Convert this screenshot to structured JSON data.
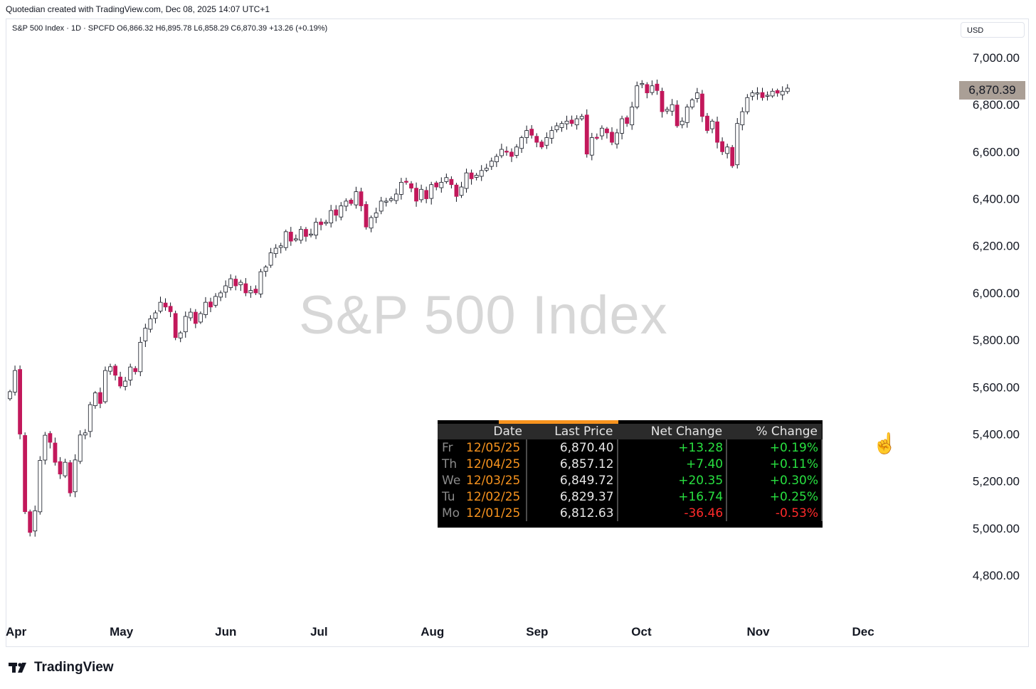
{
  "header": {
    "caption": "Quotedian created with TradingView.com, Dec 08, 2025 14:07 UTC+1",
    "legend": "S&P 500 Index · 1D · SPCFD  O6,866.32  H6,895.78  L6,858.29  C6,870.39  +13.26 (+0.19%)",
    "currency": "USD"
  },
  "watermark": "S&P 500 Index",
  "last_price_tag": "6,870.39",
  "footer": {
    "brand": "TradingView"
  },
  "colors": {
    "up": "#ffffff",
    "down": "#c2185b",
    "wick": "#131722",
    "tag": "#aa9f96"
  },
  "chart_data": {
    "type": "candlestick",
    "title": "S&P 500 Index",
    "ylim": [
      4700,
      7100
    ],
    "y_ticks": [
      "7,000.00",
      "6,800.00",
      "6,600.00",
      "6,400.00",
      "6,200.00",
      "6,000.00",
      "5,800.00",
      "5,600.00",
      "5,400.00",
      "5,200.00",
      "5,000.00",
      "4,800.00"
    ],
    "y_tick_values": [
      7000,
      6800,
      6600,
      6400,
      6200,
      6000,
      5800,
      5600,
      5400,
      5200,
      5000,
      4800
    ],
    "x_ticks": [
      "Apr",
      "May",
      "Jun",
      "Jul",
      "Aug",
      "Sep",
      "Oct",
      "Nov",
      "Dec"
    ],
    "x_tick_sessions": [
      0,
      22,
      43,
      62,
      84,
      105,
      126,
      149,
      170
    ],
    "closes": [
      5580,
      5670,
      5400,
      5070,
      4982,
      5074,
      5288,
      5395,
      5365,
      5280,
      5230,
      5280,
      5150,
      5290,
      5396,
      5405,
      5525,
      5575,
      5530,
      5670,
      5686,
      5650,
      5604,
      5625,
      5685,
      5665,
      5790,
      5850,
      5890,
      5915,
      5960,
      5940,
      5920,
      5810,
      5830,
      5900,
      5918,
      5870,
      5912,
      5960,
      5940,
      5985,
      6000,
      6030,
      6060,
      6030,
      6045,
      6000,
      6010,
      6000,
      6090,
      6110,
      6170,
      6190,
      6200,
      6260,
      6220,
      6230,
      6270,
      6240,
      6250,
      6300,
      6290,
      6300,
      6350,
      6330,
      6370,
      6390,
      6380,
      6430,
      6370,
      6280,
      6320,
      6340,
      6390,
      6390,
      6400,
      6420,
      6470,
      6470,
      6445,
      6390,
      6440,
      6400,
      6460,
      6450,
      6470,
      6490,
      6460,
      6410,
      6450,
      6510,
      6485,
      6500,
      6520,
      6530,
      6560,
      6580,
      6610,
      6600,
      6580,
      6620,
      6660,
      6690,
      6670,
      6640,
      6620,
      6660,
      6690,
      6710,
      6720,
      6730,
      6720,
      6740,
      6750,
      6590,
      6660,
      6660,
      6700,
      6680,
      6640,
      6680,
      6740,
      6720,
      6790,
      6880,
      6890,
      6850,
      6880,
      6860,
      6770,
      6780,
      6800,
      6710,
      6730,
      6790,
      6820,
      6850,
      6750,
      6690,
      6730,
      6640,
      6600,
      6620,
      6540,
      6720,
      6770,
      6830,
      6850,
      6850,
      6830,
      6840,
      6857,
      6849,
      6857,
      6870
    ]
  },
  "table": {
    "headers": [
      "Date",
      "Last Price",
      "Net Change",
      "% Change"
    ],
    "rows": [
      {
        "day": "Fr",
        "date": "12/05/25",
        "last": "6,870.40",
        "net": "+13.28",
        "pct": "+0.19%",
        "dir": "pos"
      },
      {
        "day": "Th",
        "date": "12/04/25",
        "last": "6,857.12",
        "net": "+7.40",
        "pct": "+0.11%",
        "dir": "pos"
      },
      {
        "day": "We",
        "date": "12/03/25",
        "last": "6,849.72",
        "net": "+20.35",
        "pct": "+0.30%",
        "dir": "pos"
      },
      {
        "day": "Tu",
        "date": "12/02/25",
        "last": "6,829.37",
        "net": "+16.74",
        "pct": "+0.25%",
        "dir": "pos"
      },
      {
        "day": "Mo",
        "date": "12/01/25",
        "last": "6,812.63",
        "net": "-36.46",
        "pct": "-0.53%",
        "dir": "neg"
      }
    ]
  }
}
